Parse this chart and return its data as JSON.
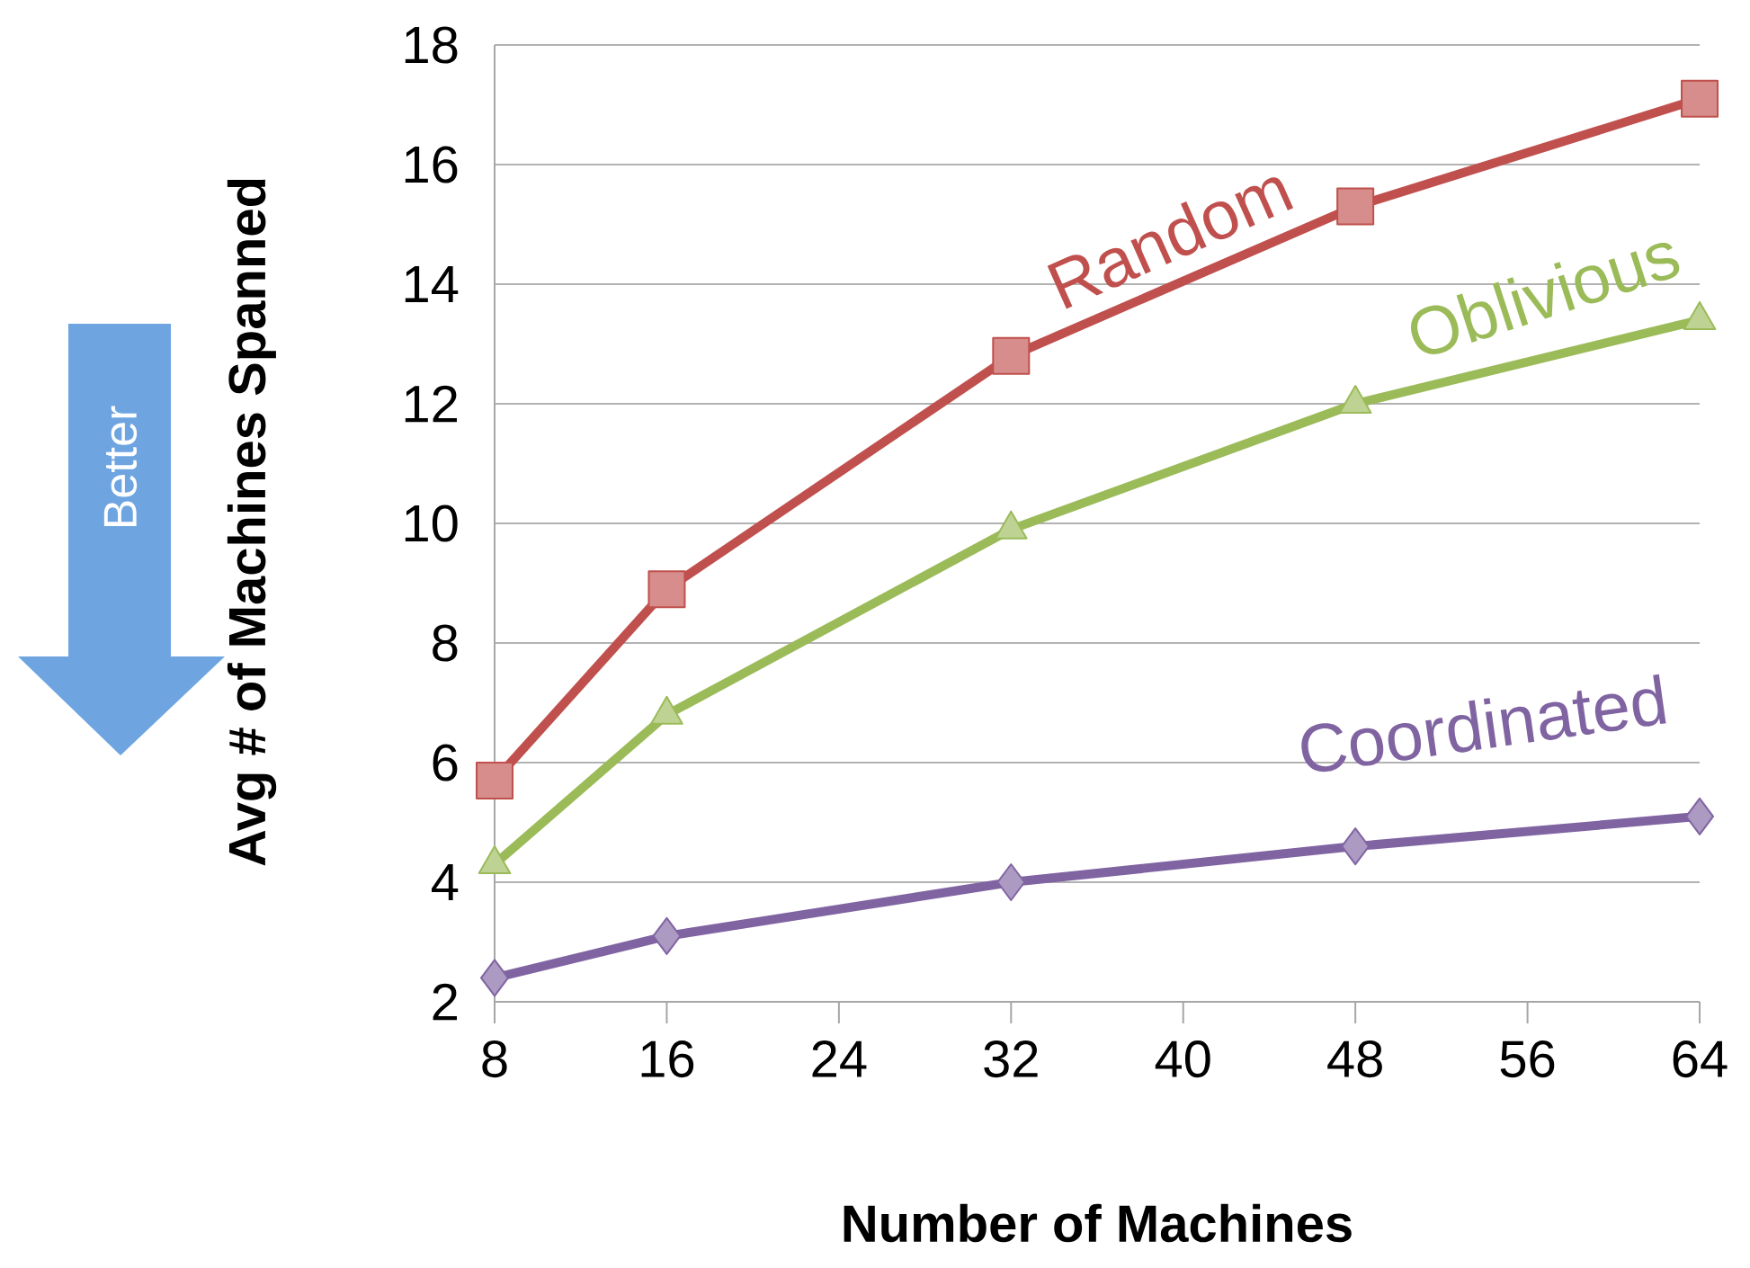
{
  "chart_data": {
    "type": "line",
    "xlabel": "Number of Machines",
    "ylabel": "Avg # of Machines Spanned",
    "x": [
      8,
      16,
      32,
      48,
      64
    ],
    "series": [
      {
        "name": "Random",
        "color": "#c0504d",
        "marker": "square",
        "values": [
          5.7,
          8.9,
          12.8,
          15.3,
          17.1
        ]
      },
      {
        "name": "Oblivious",
        "color": "#9bbb59",
        "marker": "triangle",
        "values": [
          4.3,
          6.8,
          9.9,
          12.0,
          13.4
        ]
      },
      {
        "name": "Coordinated",
        "color": "#8064a2",
        "marker": "diamond",
        "values": [
          2.4,
          3.1,
          4.0,
          4.6,
          5.1
        ]
      }
    ],
    "xlim": [
      8,
      64
    ],
    "ylim": [
      2,
      18
    ],
    "xticks": [
      8,
      16,
      24,
      32,
      40,
      48,
      56,
      64
    ],
    "yticks": [
      2,
      4,
      6,
      8,
      10,
      12,
      14,
      16,
      18
    ],
    "grid": "y",
    "legend": false,
    "annotations": [
      "Better"
    ]
  }
}
